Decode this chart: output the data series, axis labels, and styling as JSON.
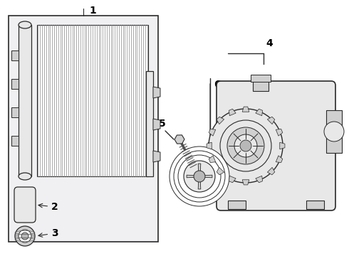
{
  "bg_color": "#ffffff",
  "line_color": "#2a2a2a",
  "fill_light": "#e8e8e8",
  "fill_mid": "#d0d0d0",
  "fill_dark": "#b8b8b8",
  "box_fill": "#f0f0f2",
  "figsize": [
    4.9,
    3.6
  ],
  "dpi": 100,
  "xlim": [
    0,
    490
  ],
  "ylim": [
    0,
    360
  ]
}
